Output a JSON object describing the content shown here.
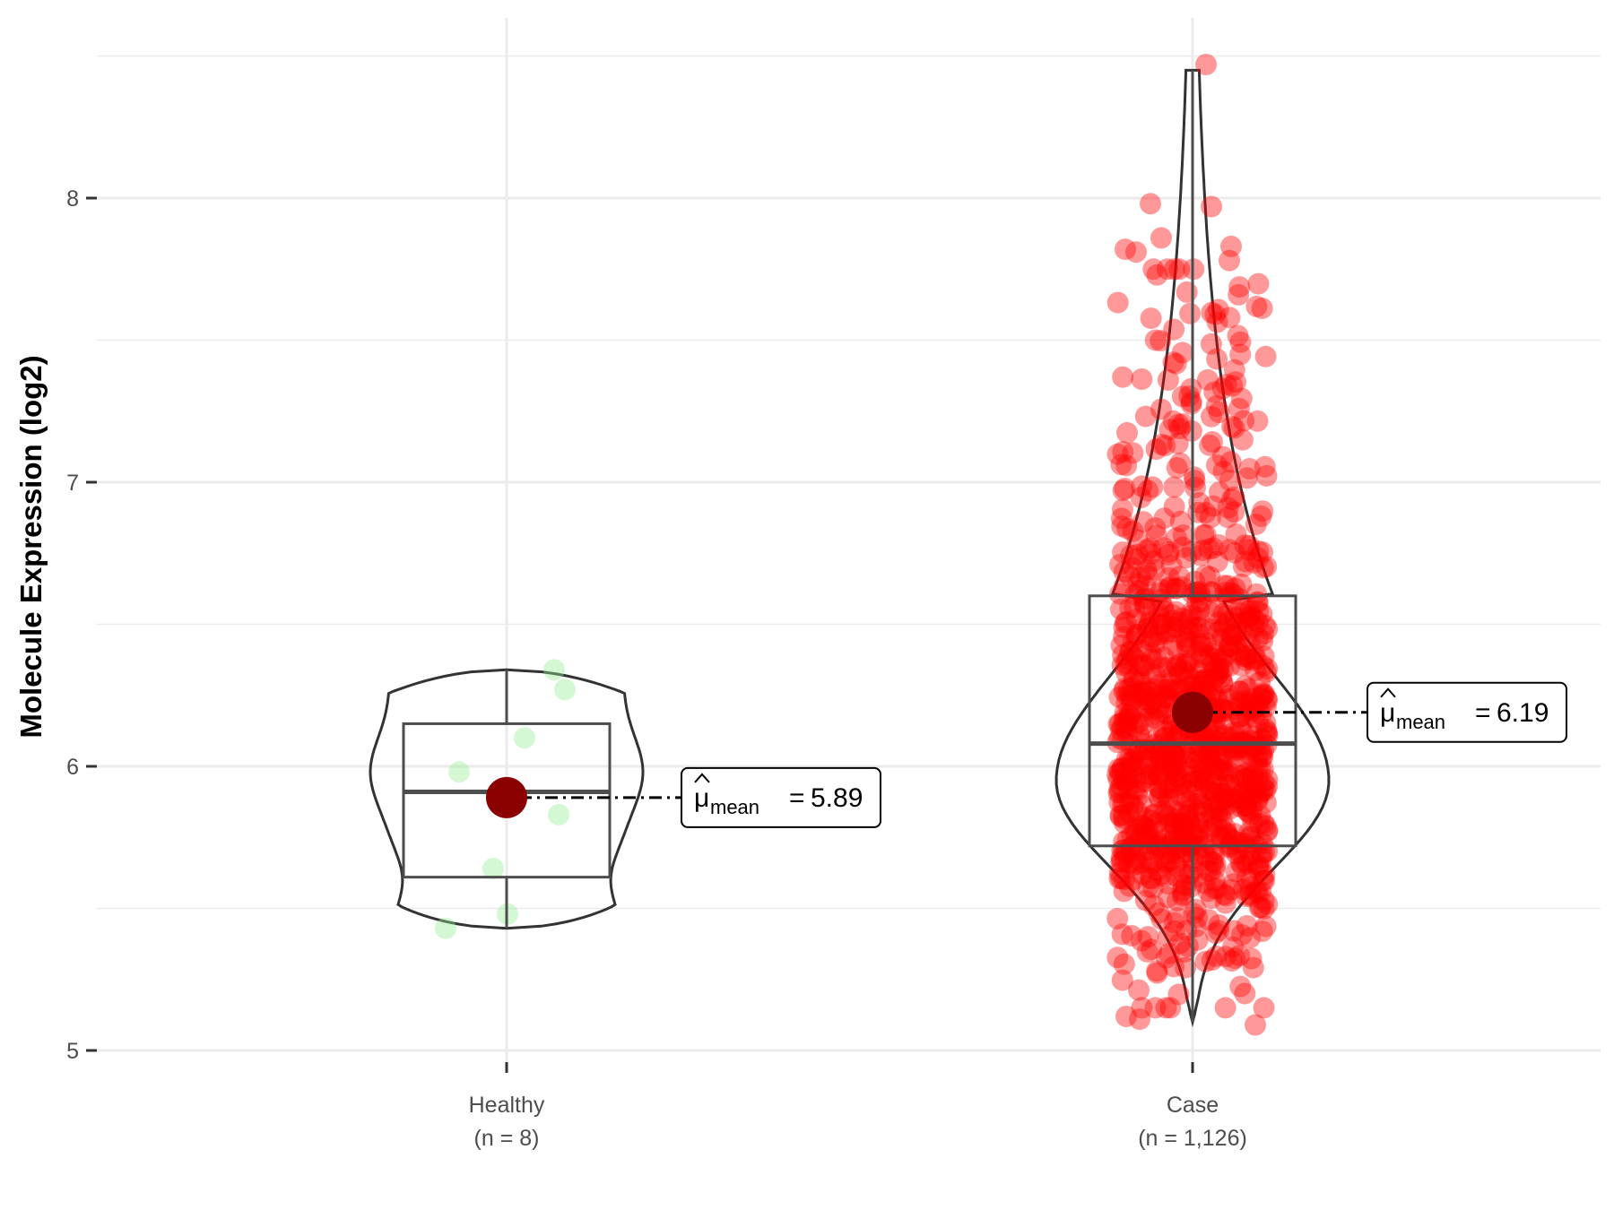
{
  "chart_data": {
    "type": "violin-box-jitter",
    "ylabel": "Molecule Expression (log2)",
    "ylim": [
      4.95,
      8.6
    ],
    "yticks": [
      5,
      6,
      7,
      8
    ],
    "grid": true,
    "mean_symbol": "μ",
    "mean_subscript": "mean",
    "groups": [
      {
        "name": "Healthy",
        "n_label": "(n = 8)",
        "color": "#90ee90",
        "points": [
          6.34,
          6.27,
          6.1,
          5.98,
          5.83,
          5.64,
          5.48,
          5.43
        ],
        "box": {
          "q1": 5.61,
          "median": 5.91,
          "q3": 6.15,
          "whisker_low": 5.43,
          "whisker_high": 6.34
        },
        "violin_range": [
          5.43,
          6.34
        ],
        "mean": 5.89,
        "mean_label": "5.89"
      },
      {
        "name": "Case",
        "n_label": "(n = 1,126)",
        "color": "#ff0000",
        "box": {
          "q1": 5.72,
          "median": 6.08,
          "q3": 6.6,
          "whisker_low": 5.1,
          "whisker_high": 8.45
        },
        "violin_range": [
          5.1,
          8.45
        ],
        "outliers_high": [
          8.47,
          7.98,
          7.97,
          7.86,
          7.83,
          7.82,
          7.81,
          7.78
        ],
        "outliers_low": [
          5.12,
          5.11,
          5.09
        ],
        "mean": 6.19,
        "mean_label": "6.19"
      }
    ]
  }
}
